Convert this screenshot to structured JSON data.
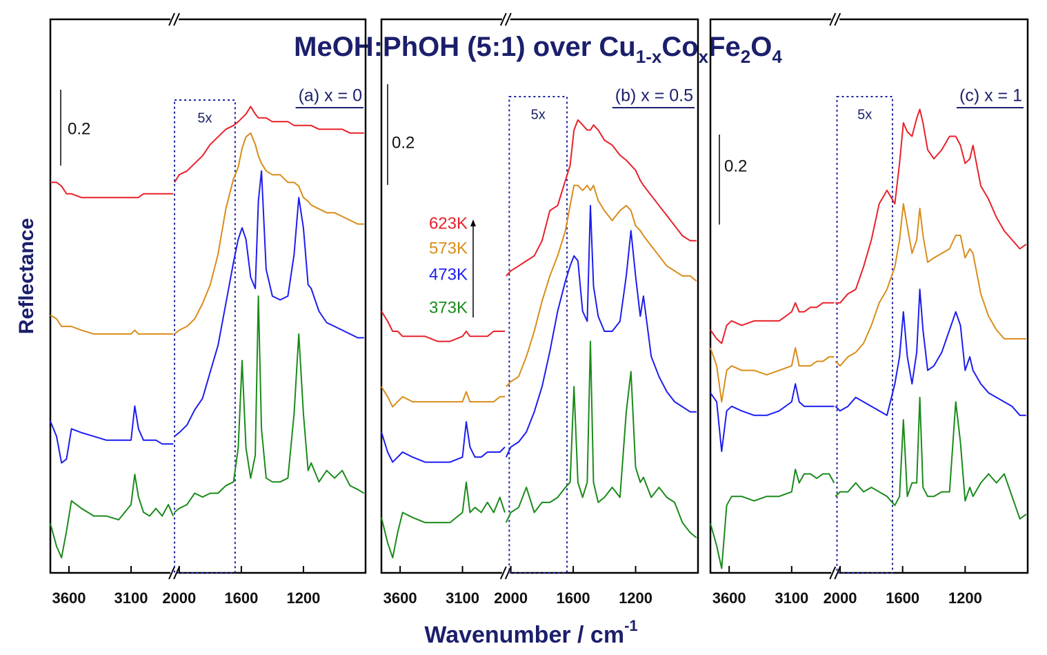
{
  "title": [
    "MeOH:PhOH (5:1) over Cu",
    "1-x",
    "Co",
    "x",
    "Fe",
    "2",
    "O",
    "4"
  ],
  "xlabel": [
    "Wavenumber / cm",
    "-1"
  ],
  "ylabel": "Reflectance",
  "chart_data": [
    {
      "type": "line",
      "label": "(a) x = 0",
      "scale_bar": 0.2,
      "zoom_box": {
        "label": "5x",
        "xlim": [
          2030,
          1640
        ]
      },
      "xlim": [
        3750,
        800
      ],
      "xbreak": [
        2750,
        2030
      ],
      "xticks": [
        3600,
        3100,
        2000,
        1600,
        1200
      ],
      "ylim": [
        0,
        1.46
      ],
      "x": [
        3750,
        3700,
        3660,
        3620,
        3580,
        3500,
        3400,
        3300,
        3200,
        3100,
        3070,
        3040,
        3000,
        2950,
        2900,
        2850,
        2800,
        2760,
        2030,
        2000,
        1950,
        1900,
        1850,
        1800,
        1750,
        1700,
        1650,
        1620,
        1595,
        1570,
        1540,
        1510,
        1490,
        1470,
        1440,
        1400,
        1350,
        1300,
        1260,
        1230,
        1200,
        1170,
        1150,
        1100,
        1050,
        1000,
        950,
        900,
        850,
        810
      ],
      "series": [
        {
          "color": "#e8202a",
          "values": [
            1.03,
            1.03,
            1.02,
            1.0,
            1.0,
            0.99,
            0.99,
            0.99,
            0.99,
            0.99,
            0.99,
            0.99,
            1.0,
            1.0,
            1.0,
            1.0,
            1.0,
            1.0,
            1.03,
            1.05,
            1.06,
            1.08,
            1.1,
            1.13,
            1.15,
            1.17,
            1.18,
            1.19,
            1.2,
            1.21,
            1.23,
            1.21,
            1.2,
            1.2,
            1.2,
            1.19,
            1.19,
            1.19,
            1.18,
            1.18,
            1.18,
            1.18,
            1.18,
            1.17,
            1.17,
            1.17,
            1.17,
            1.16,
            1.16,
            1.16
          ]
        },
        {
          "color": "#d98c1a",
          "values": [
            0.68,
            0.67,
            0.65,
            0.65,
            0.65,
            0.64,
            0.63,
            0.63,
            0.63,
            0.63,
            0.64,
            0.63,
            0.63,
            0.63,
            0.63,
            0.63,
            0.63,
            0.63,
            0.63,
            0.64,
            0.65,
            0.67,
            0.71,
            0.76,
            0.84,
            0.96,
            1.04,
            1.07,
            1.12,
            1.15,
            1.16,
            1.13,
            1.1,
            1.08,
            1.06,
            1.05,
            1.05,
            1.03,
            1.03,
            1.02,
            0.99,
            0.98,
            0.97,
            0.96,
            0.95,
            0.95,
            0.94,
            0.93,
            0.92,
            0.92
          ]
        },
        {
          "color": "#1c1cf0",
          "values": [
            0.4,
            0.36,
            0.29,
            0.3,
            0.38,
            0.37,
            0.36,
            0.35,
            0.35,
            0.35,
            0.44,
            0.38,
            0.35,
            0.35,
            0.35,
            0.34,
            0.34,
            0.34,
            0.36,
            0.37,
            0.39,
            0.43,
            0.46,
            0.53,
            0.6,
            0.71,
            0.82,
            0.88,
            0.91,
            0.88,
            0.78,
            0.75,
            0.98,
            1.06,
            0.8,
            0.73,
            0.72,
            0.73,
            0.84,
            0.99,
            0.91,
            0.76,
            0.75,
            0.69,
            0.66,
            0.65,
            0.64,
            0.63,
            0.62,
            0.62
          ]
        },
        {
          "color": "#1a8a1a",
          "values": [
            0.13,
            0.07,
            0.04,
            0.11,
            0.19,
            0.17,
            0.15,
            0.15,
            0.14,
            0.18,
            0.26,
            0.2,
            0.16,
            0.15,
            0.17,
            0.15,
            0.18,
            0.15,
            0.16,
            0.17,
            0.18,
            0.21,
            0.2,
            0.21,
            0.21,
            0.23,
            0.24,
            0.33,
            0.56,
            0.33,
            0.25,
            0.31,
            0.73,
            0.38,
            0.25,
            0.24,
            0.24,
            0.25,
            0.42,
            0.63,
            0.42,
            0.27,
            0.29,
            0.24,
            0.27,
            0.25,
            0.27,
            0.23,
            0.22,
            0.21
          ]
        }
      ]
    },
    {
      "type": "line",
      "label": "(b) x = 0.5",
      "scale_bar": 0.2,
      "zoom_box": {
        "label": "5x",
        "xlim": [
          2010,
          1640
        ]
      },
      "xlim": [
        3750,
        800
      ],
      "xbreak": [
        2750,
        2030
      ],
      "xticks": [
        3600,
        3100,
        2000,
        1600,
        1200
      ],
      "ylim": [
        0,
        1.1
      ],
      "x": [
        3750,
        3700,
        3660,
        3620,
        3580,
        3500,
        3400,
        3300,
        3200,
        3100,
        3070,
        3040,
        3000,
        2950,
        2900,
        2850,
        2800,
        2760,
        2030,
        2000,
        1950,
        1900,
        1850,
        1800,
        1750,
        1700,
        1650,
        1620,
        1595,
        1570,
        1540,
        1510,
        1490,
        1470,
        1440,
        1400,
        1350,
        1300,
        1260,
        1230,
        1200,
        1170,
        1150,
        1100,
        1050,
        1000,
        950,
        900,
        850,
        810
      ],
      "series": [
        {
          "name": "623K",
          "color": "#e8202a",
          "values": [
            0.52,
            0.5,
            0.48,
            0.48,
            0.47,
            0.47,
            0.47,
            0.46,
            0.46,
            0.47,
            0.48,
            0.47,
            0.47,
            0.47,
            0.47,
            0.48,
            0.48,
            0.48,
            0.59,
            0.6,
            0.61,
            0.62,
            0.63,
            0.66,
            0.72,
            0.73,
            0.78,
            0.81,
            0.88,
            0.9,
            0.89,
            0.88,
            0.88,
            0.89,
            0.88,
            0.86,
            0.85,
            0.83,
            0.82,
            0.81,
            0.8,
            0.78,
            0.77,
            0.75,
            0.73,
            0.71,
            0.69,
            0.67,
            0.66,
            0.66
          ]
        },
        {
          "name": "573K",
          "color": "#d98c1a",
          "values": [
            0.37,
            0.35,
            0.33,
            0.34,
            0.35,
            0.34,
            0.34,
            0.34,
            0.34,
            0.34,
            0.36,
            0.34,
            0.34,
            0.34,
            0.34,
            0.34,
            0.35,
            0.35,
            0.37,
            0.38,
            0.39,
            0.43,
            0.48,
            0.54,
            0.59,
            0.63,
            0.68,
            0.73,
            0.77,
            0.77,
            0.76,
            0.77,
            0.76,
            0.77,
            0.74,
            0.72,
            0.7,
            0.72,
            0.73,
            0.72,
            0.69,
            0.68,
            0.67,
            0.65,
            0.63,
            0.61,
            0.6,
            0.59,
            0.59,
            0.58
          ]
        },
        {
          "name": "473K",
          "color": "#1c1cf0",
          "values": [
            0.28,
            0.24,
            0.22,
            0.23,
            0.24,
            0.23,
            0.22,
            0.22,
            0.22,
            0.23,
            0.3,
            0.25,
            0.23,
            0.23,
            0.24,
            0.24,
            0.24,
            0.25,
            0.23,
            0.25,
            0.26,
            0.28,
            0.32,
            0.37,
            0.44,
            0.52,
            0.58,
            0.61,
            0.63,
            0.62,
            0.52,
            0.5,
            0.73,
            0.57,
            0.51,
            0.48,
            0.48,
            0.5,
            0.59,
            0.68,
            0.59,
            0.51,
            0.55,
            0.43,
            0.39,
            0.36,
            0.34,
            0.33,
            0.32,
            0.32
          ]
        },
        {
          "name": "373K",
          "color": "#1a8a1a",
          "values": [
            0.11,
            0.06,
            0.03,
            0.08,
            0.12,
            0.11,
            0.1,
            0.1,
            0.1,
            0.12,
            0.18,
            0.12,
            0.13,
            0.12,
            0.14,
            0.12,
            0.15,
            0.12,
            0.1,
            0.12,
            0.13,
            0.17,
            0.12,
            0.14,
            0.14,
            0.15,
            0.17,
            0.18,
            0.37,
            0.18,
            0.15,
            0.18,
            0.46,
            0.18,
            0.14,
            0.15,
            0.17,
            0.15,
            0.32,
            0.4,
            0.21,
            0.18,
            0.19,
            0.15,
            0.17,
            0.15,
            0.14,
            0.1,
            0.08,
            0.07
          ]
        }
      ]
    },
    {
      "type": "line",
      "label": "(c) x = 1",
      "scale_bar": 0.2,
      "zoom_box": {
        "label": "5x",
        "xlim": [
          2020,
          1665
        ]
      },
      "xlim": [
        3750,
        800
      ],
      "xbreak": [
        2750,
        2030
      ],
      "xticks": [
        3600,
        3100,
        2000,
        1600,
        1200
      ],
      "ylim": [
        0,
        1.23
      ],
      "x": [
        3750,
        3700,
        3660,
        3620,
        3580,
        3500,
        3400,
        3300,
        3200,
        3100,
        3070,
        3040,
        3000,
        2950,
        2900,
        2850,
        2800,
        2760,
        2030,
        2000,
        1950,
        1900,
        1850,
        1800,
        1750,
        1700,
        1650,
        1620,
        1595,
        1570,
        1540,
        1510,
        1490,
        1470,
        1440,
        1400,
        1350,
        1300,
        1260,
        1230,
        1200,
        1170,
        1150,
        1100,
        1050,
        1000,
        950,
        900,
        850,
        810
      ],
      "series": [
        {
          "color": "#e8202a",
          "values": [
            0.54,
            0.52,
            0.51,
            0.55,
            0.56,
            0.55,
            0.56,
            0.56,
            0.56,
            0.58,
            0.6,
            0.58,
            0.58,
            0.59,
            0.59,
            0.6,
            0.6,
            0.6,
            0.6,
            0.6,
            0.62,
            0.63,
            0.68,
            0.74,
            0.82,
            0.85,
            0.82,
            0.91,
            1.0,
            0.98,
            0.97,
            1.01,
            1.03,
            1.0,
            0.94,
            0.92,
            0.94,
            0.97,
            0.97,
            0.95,
            0.91,
            0.92,
            0.95,
            0.86,
            0.83,
            0.79,
            0.76,
            0.74,
            0.72,
            0.73
          ]
        },
        {
          "color": "#d98c1a",
          "values": [
            0.5,
            0.46,
            0.38,
            0.45,
            0.46,
            0.45,
            0.45,
            0.44,
            0.45,
            0.46,
            0.5,
            0.46,
            0.46,
            0.46,
            0.47,
            0.47,
            0.48,
            0.48,
            0.47,
            0.46,
            0.48,
            0.49,
            0.51,
            0.55,
            0.6,
            0.63,
            0.68,
            0.74,
            0.82,
            0.77,
            0.71,
            0.74,
            0.81,
            0.75,
            0.69,
            0.7,
            0.71,
            0.72,
            0.75,
            0.75,
            0.7,
            0.72,
            0.71,
            0.62,
            0.57,
            0.54,
            0.52,
            0.52,
            0.52,
            0.52
          ]
        },
        {
          "color": "#1c1cf0",
          "values": [
            0.4,
            0.38,
            0.27,
            0.36,
            0.37,
            0.36,
            0.35,
            0.35,
            0.36,
            0.38,
            0.42,
            0.38,
            0.37,
            0.37,
            0.37,
            0.37,
            0.37,
            0.37,
            0.37,
            0.36,
            0.37,
            0.39,
            0.38,
            0.37,
            0.36,
            0.35,
            0.42,
            0.48,
            0.58,
            0.48,
            0.42,
            0.49,
            0.63,
            0.54,
            0.45,
            0.46,
            0.49,
            0.54,
            0.58,
            0.55,
            0.45,
            0.48,
            0.45,
            0.42,
            0.4,
            0.39,
            0.38,
            0.37,
            0.35,
            0.35
          ]
        },
        {
          "color": "#1a8a1a",
          "values": [
            0.11,
            0.06,
            0.01,
            0.15,
            0.17,
            0.17,
            0.16,
            0.17,
            0.17,
            0.18,
            0.23,
            0.2,
            0.22,
            0.22,
            0.21,
            0.22,
            0.22,
            0.2,
            0.17,
            0.18,
            0.18,
            0.2,
            0.18,
            0.19,
            0.18,
            0.17,
            0.15,
            0.17,
            0.34,
            0.17,
            0.2,
            0.2,
            0.39,
            0.19,
            0.17,
            0.17,
            0.18,
            0.18,
            0.38,
            0.29,
            0.16,
            0.19,
            0.17,
            0.2,
            0.22,
            0.2,
            0.22,
            0.17,
            0.12,
            0.13
          ]
        }
      ]
    }
  ]
}
